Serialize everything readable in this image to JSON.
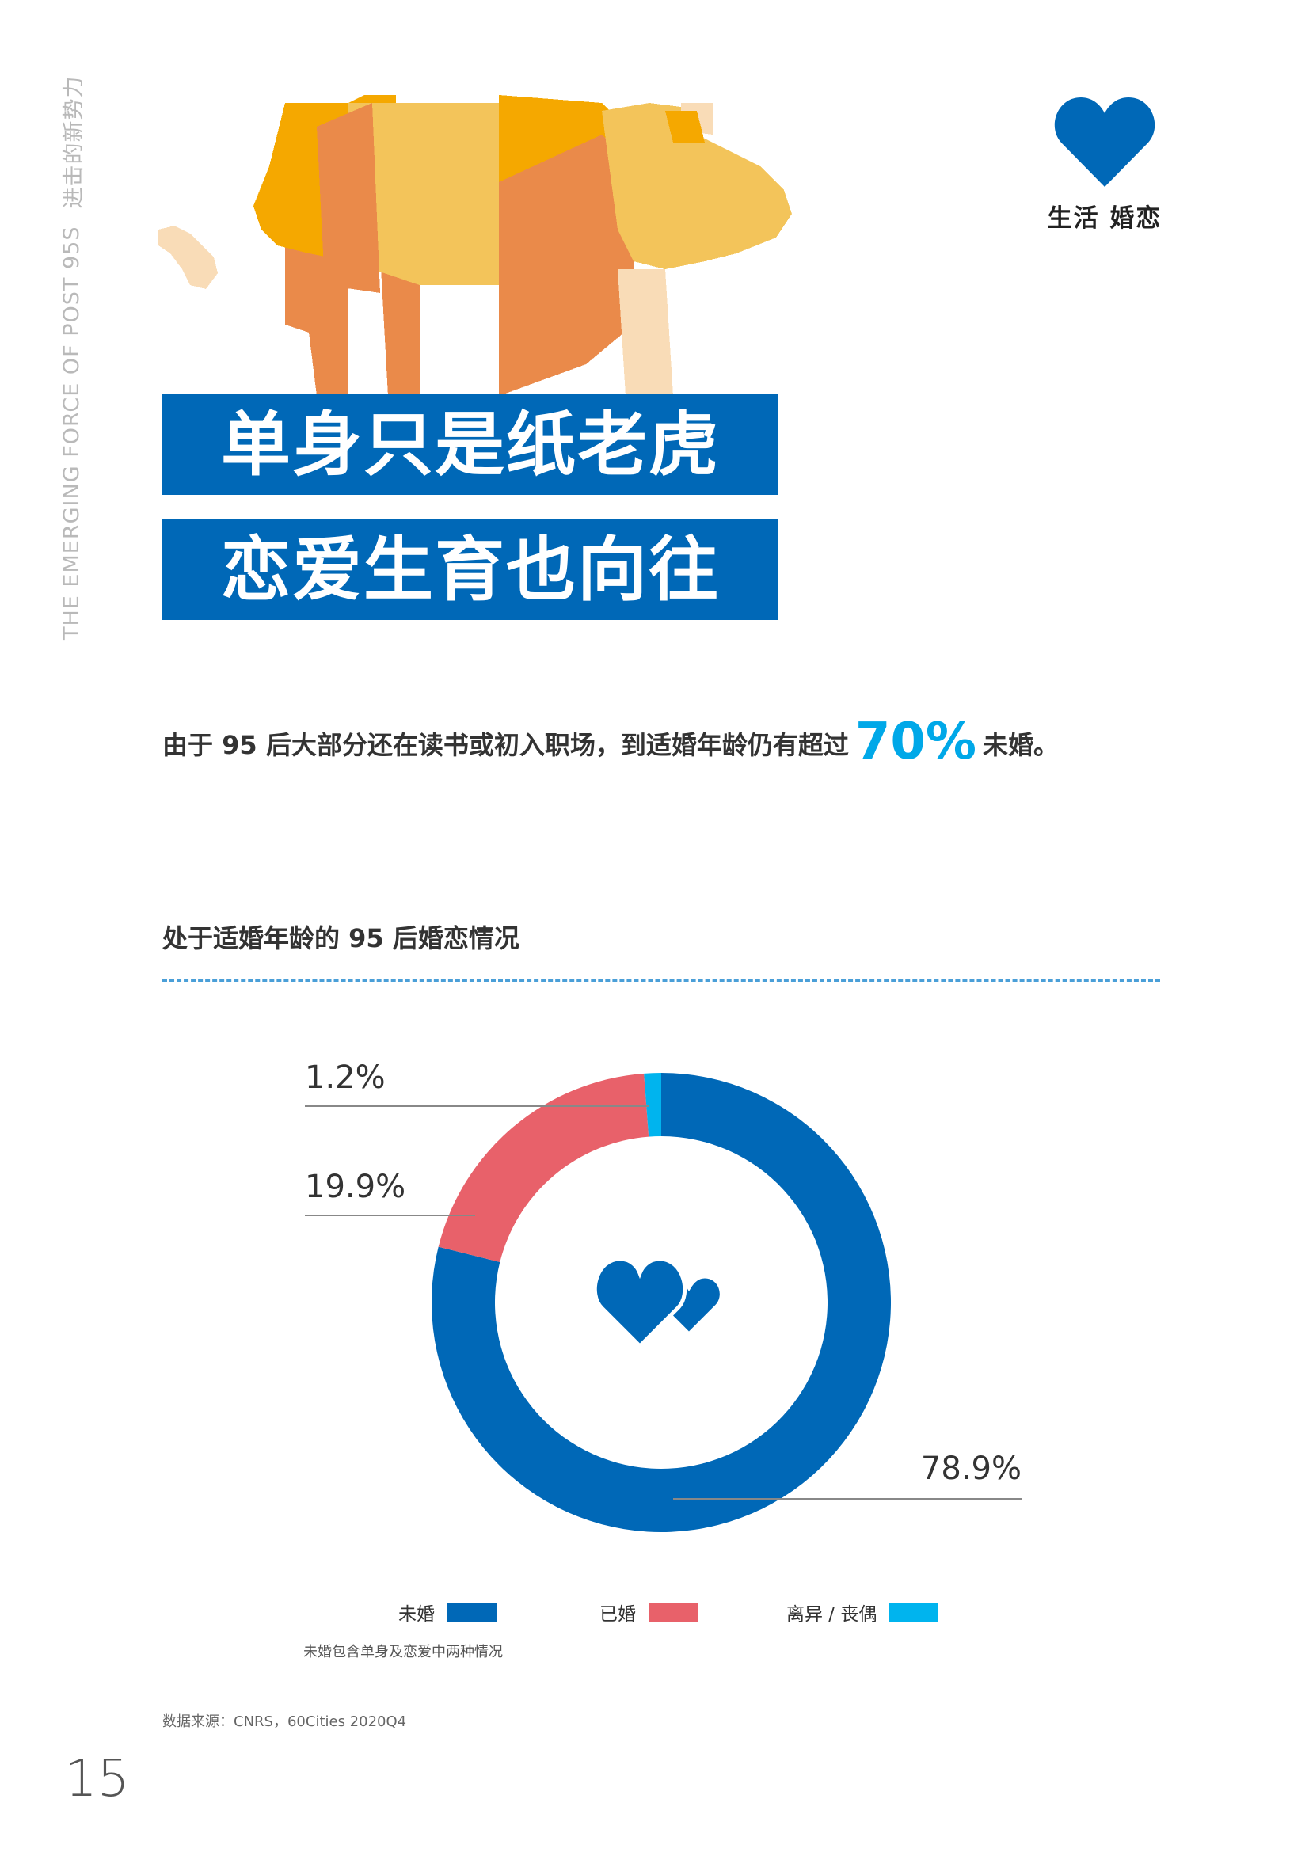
{
  "side_text": {
    "en": "THE EMERGING FORCE OF POST 95S",
    "cn": "进击的新势力"
  },
  "category": {
    "label": "生活 婚恋",
    "icon": "heart-icon",
    "color": "#0068b7"
  },
  "title": {
    "line1": "单身只是纸老虎",
    "line2": "恋爱生育也向往"
  },
  "intro": {
    "before": "由于 95 后大部分还在读书或初入职场，到适婚年龄仍有超过",
    "highlight": "70%",
    "after": "未婚。"
  },
  "chart_title": "处于适婚年龄的 95 后婚恋情况",
  "chart_data": {
    "type": "pie",
    "donut": true,
    "start": "top",
    "direction": "clockwise",
    "slices": [
      {
        "label": "未婚",
        "value": 78.9,
        "display": "78.9%",
        "color": "#0068b7"
      },
      {
        "label": "已婚",
        "value": 19.9,
        "display": "19.9%",
        "color": "#e8616a"
      },
      {
        "label": "离异 / 丧偶",
        "value": 1.2,
        "display": "1.2%",
        "color": "#00b4ee"
      }
    ],
    "center_icon": "double-heart-icon",
    "legend_position": "bottom"
  },
  "footnote": "未婚包含单身及恋爱中两种情况",
  "source": "数据来源：CNRS，60Cities 2020Q4",
  "page_number": "15"
}
